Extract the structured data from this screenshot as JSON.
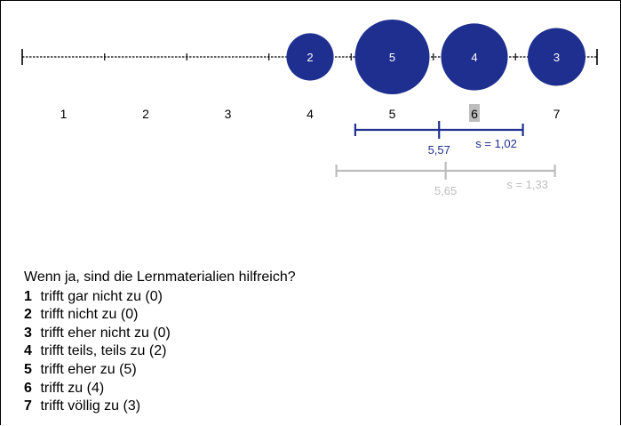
{
  "chart_data": {
    "type": "bubble-scale",
    "scale": [
      1,
      2,
      3,
      4,
      5,
      6,
      7
    ],
    "counts": [
      0,
      0,
      0,
      2,
      5,
      4,
      3
    ],
    "highlight_category": 6,
    "colors": {
      "bubble": "#1f2f8f",
      "secondary": "#bdbdbd",
      "highlight_bg": "#bdbdbd"
    },
    "primary_stats": {
      "mean": 5.57,
      "sd": 1.02,
      "mean_label": "5,57",
      "sd_label": "s = 1,02"
    },
    "secondary_stats": {
      "mean": 5.65,
      "sd": 1.33,
      "mean_label": "5,65",
      "sd_label": "s = 1,33"
    }
  },
  "question": "Wenn ja, sind die Lernmaterialien hilfreich?",
  "options": [
    {
      "num": "1",
      "text": "trifft gar nicht zu (0)"
    },
    {
      "num": "2",
      "text": "trifft nicht zu (0)"
    },
    {
      "num": "3",
      "text": "trifft eher nicht zu (0)"
    },
    {
      "num": "4",
      "text": "trifft teils, teils zu (2)"
    },
    {
      "num": "5",
      "text": "trifft eher zu (5)"
    },
    {
      "num": "6",
      "text": "trifft zu (4)"
    },
    {
      "num": "7",
      "text": "trifft völlig zu (3)"
    }
  ]
}
